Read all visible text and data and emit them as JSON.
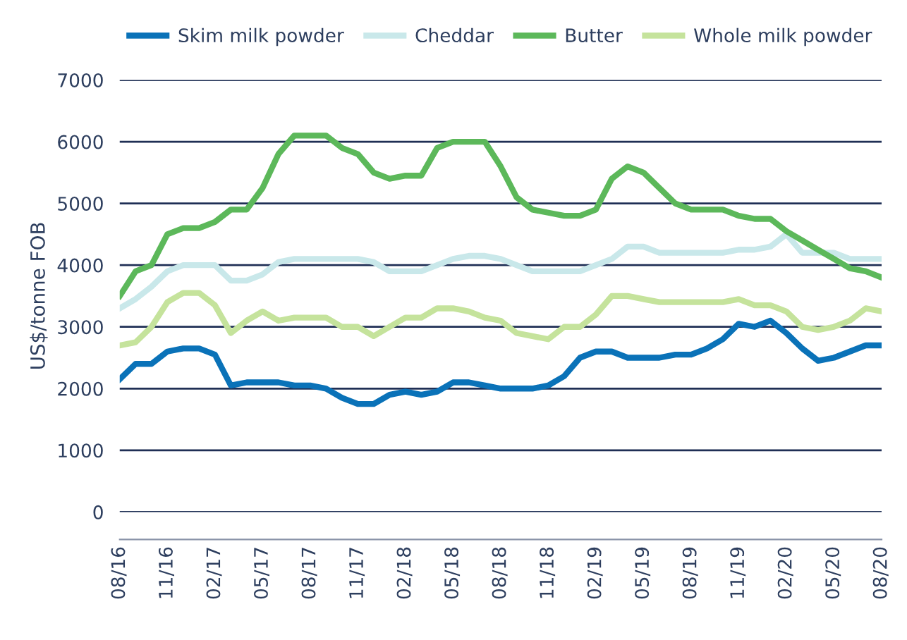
{
  "chart_data": {
    "type": "line",
    "ylabel": "US$/tonne FOB",
    "categories": [
      "08/16",
      null,
      null,
      "11/16",
      null,
      null,
      "02/17",
      null,
      null,
      "05/17",
      null,
      null,
      "08/17",
      null,
      null,
      "11/17",
      null,
      null,
      "02/18",
      null,
      null,
      "05/18",
      null,
      null,
      "08/18",
      null,
      null,
      "11/18",
      null,
      null,
      "02/19",
      null,
      null,
      "05/19",
      null,
      null,
      "08/19",
      null,
      null,
      "11/19",
      null,
      null,
      "02/20",
      null,
      null,
      "05/20",
      null,
      null,
      "08/20"
    ],
    "series": [
      {
        "name": "Skim milk powder",
        "color": "#0a72b8",
        "values": [
          2150,
          2400,
          2400,
          2600,
          2650,
          2650,
          2550,
          2050,
          2100,
          2100,
          2100,
          2050,
          2050,
          2000,
          1850,
          1750,
          1750,
          1900,
          1950,
          1900,
          1950,
          2100,
          2100,
          2050,
          2000,
          2000,
          2000,
          2050,
          2200,
          2500,
          2600,
          2600,
          2500,
          2500,
          2500,
          2550,
          2550,
          2650,
          2800,
          3050,
          3000,
          3100,
          2900,
          2650,
          2450,
          2500,
          2600,
          2700,
          2700
        ]
      },
      {
        "name": "Cheddar",
        "color": "#c9e8ea",
        "values": [
          3300,
          3450,
          3650,
          3900,
          4000,
          4000,
          4000,
          3750,
          3750,
          3850,
          4050,
          4100,
          4100,
          4100,
          4100,
          4100,
          4050,
          3900,
          3900,
          3900,
          4000,
          4100,
          4150,
          4150,
          4100,
          4000,
          3900,
          3900,
          3900,
          3900,
          4000,
          4100,
          4300,
          4300,
          4200,
          4200,
          4200,
          4200,
          4200,
          4250,
          4250,
          4300,
          4500,
          4200,
          4200,
          4200,
          4100,
          4100,
          4100
        ]
      },
      {
        "name": "Butter",
        "color": "#5cb85a",
        "values": [
          3500,
          3900,
          4000,
          4500,
          4600,
          4600,
          4700,
          4900,
          4900,
          5250,
          5800,
          6100,
          6100,
          6100,
          5900,
          5800,
          5500,
          5400,
          5450,
          5450,
          5900,
          6000,
          6000,
          6000,
          5600,
          5100,
          4900,
          4850,
          4800,
          4800,
          4900,
          5400,
          5600,
          5500,
          5250,
          5000,
          4900,
          4900,
          4900,
          4800,
          4750,
          4750,
          4550,
          4400,
          4250,
          4100,
          3950,
          3900,
          3800
        ]
      },
      {
        "name": "Whole milk powder",
        "color": "#c5e39c",
        "values": [
          2700,
          2750,
          3000,
          3400,
          3550,
          3550,
          3350,
          2900,
          3100,
          3250,
          3100,
          3150,
          3150,
          3150,
          3000,
          3000,
          2850,
          3000,
          3150,
          3150,
          3300,
          3300,
          3250,
          3150,
          3100,
          2900,
          2850,
          2800,
          3000,
          3000,
          3200,
          3500,
          3500,
          3450,
          3400,
          3400,
          3400,
          3400,
          3400,
          3450,
          3350,
          3350,
          3250,
          3000,
          2950,
          3000,
          3100,
          3300,
          3250
        ]
      }
    ],
    "ylim": [
      0,
      7000
    ],
    "yticks": [
      0,
      1000,
      2000,
      3000,
      4000,
      5000,
      6000,
      7000
    ],
    "grid": "y",
    "legend": "top",
    "line_style": "solid",
    "marker": "none"
  }
}
